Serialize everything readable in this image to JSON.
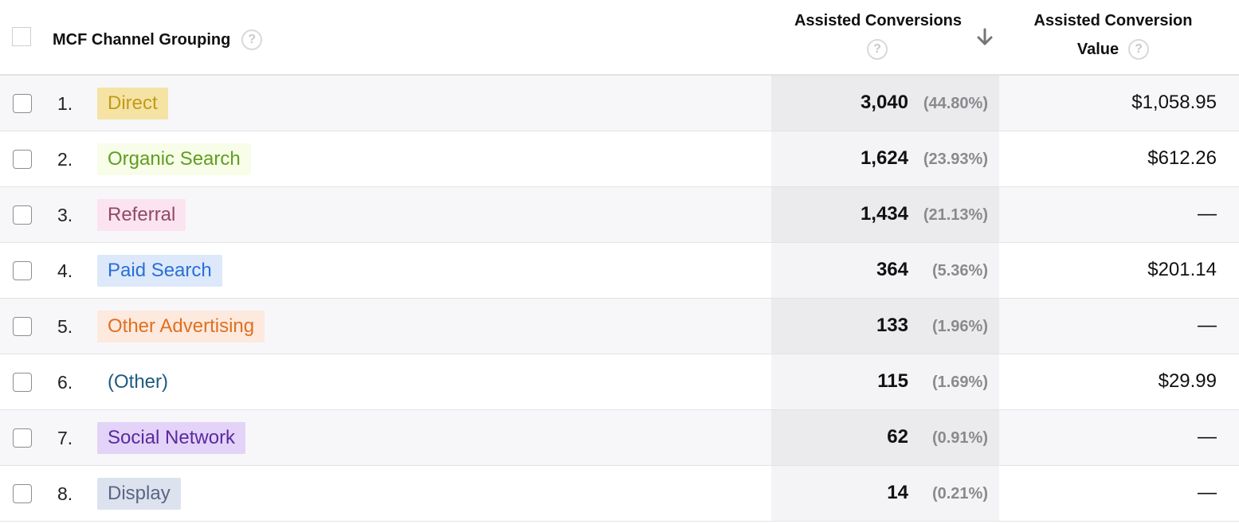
{
  "header": {
    "dimension_label": "MCF Channel Grouping",
    "assisted_conversions_label": "Assisted Conversions",
    "assisted_conversion_value_label_line1": "Assisted Conversion",
    "assisted_conversion_value_label_line2": "Value",
    "help_glyph": "?",
    "sort_direction": "descending"
  },
  "rows": [
    {
      "index": "1.",
      "channel": "Direct",
      "channel_color": "#c09a1c",
      "channel_bg": "#f5e3a3",
      "assisted_conversions": "3,040",
      "assisted_conversions_pct": "(44.80%)",
      "assisted_conversion_value": "$1,058.95"
    },
    {
      "index": "2.",
      "channel": "Organic Search",
      "channel_color": "#5f9e1f",
      "channel_bg": "#f7fde9",
      "assisted_conversions": "1,624",
      "assisted_conversions_pct": "(23.93%)",
      "assisted_conversion_value": "$612.26"
    },
    {
      "index": "3.",
      "channel": "Referral",
      "channel_color": "#8f4a66",
      "channel_bg": "#fbe3ef",
      "assisted_conversions": "1,434",
      "assisted_conversions_pct": "(21.13%)",
      "assisted_conversion_value": "—"
    },
    {
      "index": "4.",
      "channel": "Paid Search",
      "channel_color": "#2a6fd6",
      "channel_bg": "#dde9fa",
      "assisted_conversions": "364",
      "assisted_conversions_pct": "(5.36%)",
      "assisted_conversion_value": "$201.14"
    },
    {
      "index": "5.",
      "channel": "Other Advertising",
      "channel_color": "#e07020",
      "channel_bg": "#fde9de",
      "assisted_conversions": "133",
      "assisted_conversions_pct": "(1.96%)",
      "assisted_conversion_value": "—"
    },
    {
      "index": "6.",
      "channel": "(Other)",
      "channel_color": "#1f5a80",
      "channel_bg": "transparent",
      "assisted_conversions": "115",
      "assisted_conversions_pct": "(1.69%)",
      "assisted_conversion_value": "$29.99"
    },
    {
      "index": "7.",
      "channel": "Social Network",
      "channel_color": "#5a2a9e",
      "channel_bg": "#e3d3f8",
      "assisted_conversions": "62",
      "assisted_conversions_pct": "(0.91%)",
      "assisted_conversion_value": "—"
    },
    {
      "index": "8.",
      "channel": "Display",
      "channel_color": "#5a6685",
      "channel_bg": "#dde2ef",
      "assisted_conversions": "14",
      "assisted_conversions_pct": "(0.21%)",
      "assisted_conversion_value": "—"
    }
  ],
  "icons": {
    "help": "question-circle-icon",
    "sort": "arrow-down-icon"
  }
}
